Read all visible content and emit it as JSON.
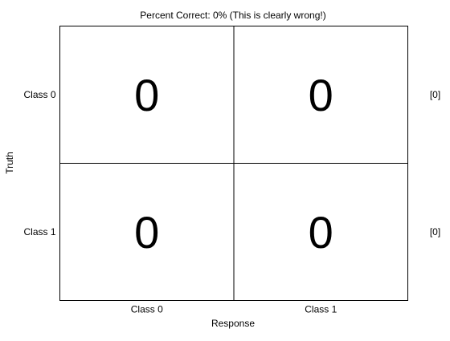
{
  "chart_data": {
    "type": "heatmap",
    "title": "Percent Correct: 0% (This is clearly wrong!)",
    "xlabel": "Response",
    "ylabel": "Truth",
    "x_categories": [
      "Class 0",
      "Class 1"
    ],
    "y_categories": [
      "Class 0",
      "Class 1"
    ],
    "values": [
      [
        0,
        0
      ],
      [
        0,
        0
      ]
    ],
    "row_totals": [
      "[0]",
      "[0]"
    ],
    "grid": true
  }
}
